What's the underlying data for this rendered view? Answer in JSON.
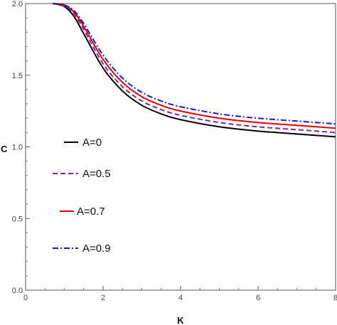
{
  "chart_data": {
    "type": "line",
    "title": "",
    "xlabel": "K",
    "ylabel": "C",
    "xlim": [
      0,
      8
    ],
    "ylim": [
      0,
      2.0
    ],
    "xticks": [
      0,
      2,
      4,
      6,
      8
    ],
    "xtick_labels": [
      "0",
      "2",
      "4",
      "6",
      "8"
    ],
    "yticks": [
      0,
      0.5,
      1.0,
      1.5,
      2.0
    ],
    "ytick_labels": [
      "0.0",
      "0.5",
      "1.0",
      "1.5",
      "2.0"
    ],
    "grid": false,
    "legend_position": "left-center",
    "x": [
      0.7,
      1.0,
      1.25,
      1.5,
      2.0,
      2.5,
      3.0,
      3.5,
      4.0,
      5.0,
      6.0,
      7.0,
      8.0
    ],
    "series": [
      {
        "name": "A=0",
        "color": "#000000",
        "dash": "solid",
        "values": [
          2.0,
          1.98,
          1.91,
          1.79,
          1.55,
          1.39,
          1.29,
          1.23,
          1.19,
          1.14,
          1.11,
          1.09,
          1.07
        ]
      },
      {
        "name": "A=0.5",
        "color": "#7b2a9e",
        "dash": "dashed",
        "values": [
          2.0,
          1.985,
          1.93,
          1.82,
          1.58,
          1.42,
          1.32,
          1.26,
          1.22,
          1.17,
          1.14,
          1.12,
          1.1
        ]
      },
      {
        "name": "A=0.7",
        "color": "#e00000",
        "dash": "solid",
        "values": [
          2.0,
          1.99,
          1.94,
          1.84,
          1.61,
          1.45,
          1.35,
          1.29,
          1.25,
          1.2,
          1.17,
          1.15,
          1.13
        ]
      },
      {
        "name": "A=0.9",
        "color": "#1a1acc",
        "dash": "dashdot",
        "values": [
          2.0,
          1.99,
          1.95,
          1.86,
          1.64,
          1.48,
          1.38,
          1.32,
          1.28,
          1.23,
          1.2,
          1.18,
          1.16
        ]
      }
    ]
  }
}
